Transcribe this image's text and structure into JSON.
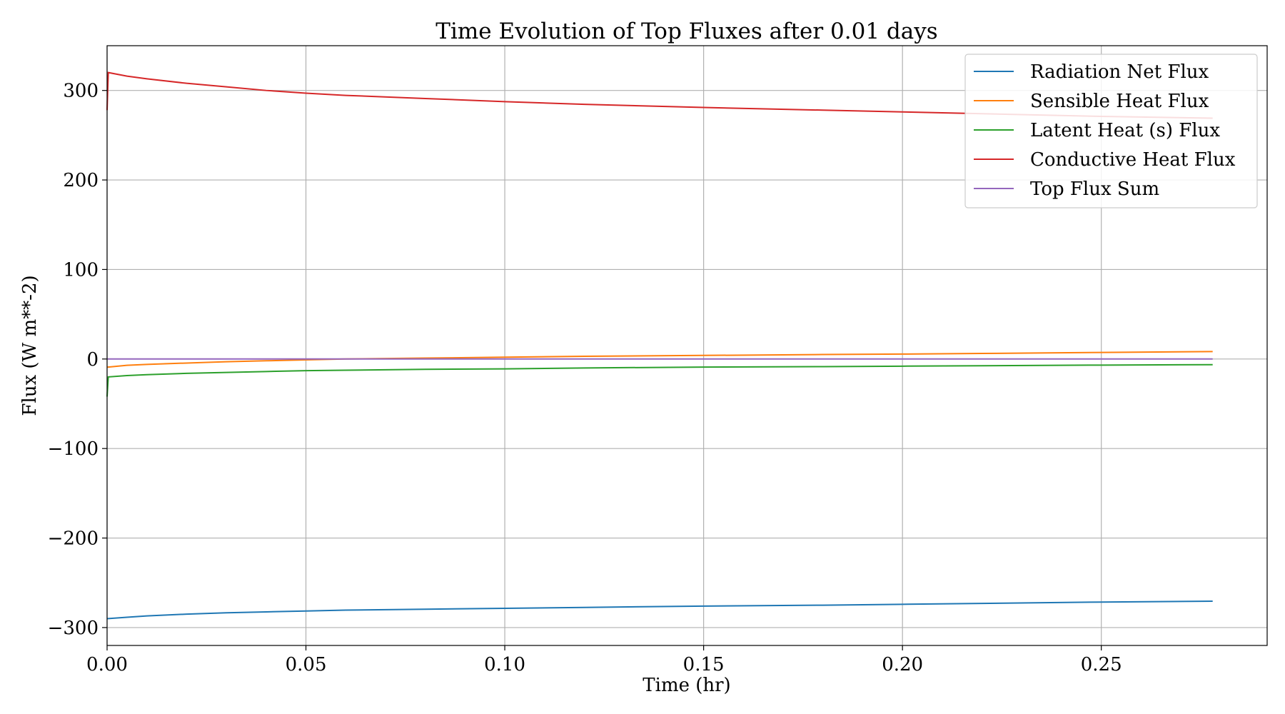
{
  "chart_data": {
    "type": "line",
    "title": "Time Evolution of Top Fluxes after 0.01 days",
    "xlabel": "Time (hr)",
    "ylabel": "Flux (W m**-2)",
    "xlim": [
      0.0,
      0.2917
    ],
    "ylim": [
      -320,
      350
    ],
    "xticks": [
      0.0,
      0.05,
      0.1,
      0.15,
      0.2,
      0.25
    ],
    "xtick_labels": [
      "0.00",
      "0.05",
      "0.10",
      "0.15",
      "0.20",
      "0.25"
    ],
    "yticks": [
      -300,
      -200,
      -100,
      0,
      100,
      200,
      300
    ],
    "ytick_labels": [
      "−300",
      "−200",
      "−100",
      "0",
      "100",
      "200",
      "300"
    ],
    "grid": true,
    "legend_position": "upper right",
    "x": [
      0.0,
      0.0003,
      0.005,
      0.01,
      0.02,
      0.03,
      0.04,
      0.05,
      0.06,
      0.08,
      0.1,
      0.12,
      0.15,
      0.18,
      0.2,
      0.22,
      0.25,
      0.278
    ],
    "series": [
      {
        "name": "Radiation Net Flux",
        "color": "#1f77b4",
        "values": [
          -290,
          -290,
          -288.5,
          -287,
          -285,
          -283.5,
          -282.5,
          -281.5,
          -280.5,
          -279.5,
          -278.5,
          -277.5,
          -276,
          -275,
          -274,
          -273,
          -271.5,
          -270.5
        ]
      },
      {
        "name": "Sensible Heat Flux",
        "color": "#ff7f0e",
        "values": [
          -9,
          -9,
          -7,
          -6,
          -4.5,
          -3,
          -2,
          -1,
          0,
          1,
          2,
          3,
          4,
          5,
          5.5,
          6.2,
          7.3,
          8.3
        ]
      },
      {
        "name": "Latent Heat (s) Flux",
        "color": "#2ca02c",
        "values": [
          -42,
          -20,
          -18.5,
          -17.5,
          -16,
          -15,
          -14,
          -13,
          -12.5,
          -11.5,
          -11,
          -10,
          -9,
          -8.5,
          -8,
          -7.5,
          -6.8,
          -6.3
        ]
      },
      {
        "name": "Conductive Heat Flux",
        "color": "#d62728",
        "values": [
          278,
          320,
          316,
          313,
          308,
          304,
          300,
          297,
          294.5,
          291,
          287.5,
          284.5,
          281,
          278,
          276,
          274,
          271,
          269
        ]
      },
      {
        "name": "Top Flux Sum",
        "color": "#9467bd",
        "values": [
          0,
          0,
          0,
          0,
          0,
          0,
          0,
          0,
          0,
          0,
          0,
          0,
          0,
          0,
          0,
          0,
          0,
          0
        ]
      }
    ]
  }
}
